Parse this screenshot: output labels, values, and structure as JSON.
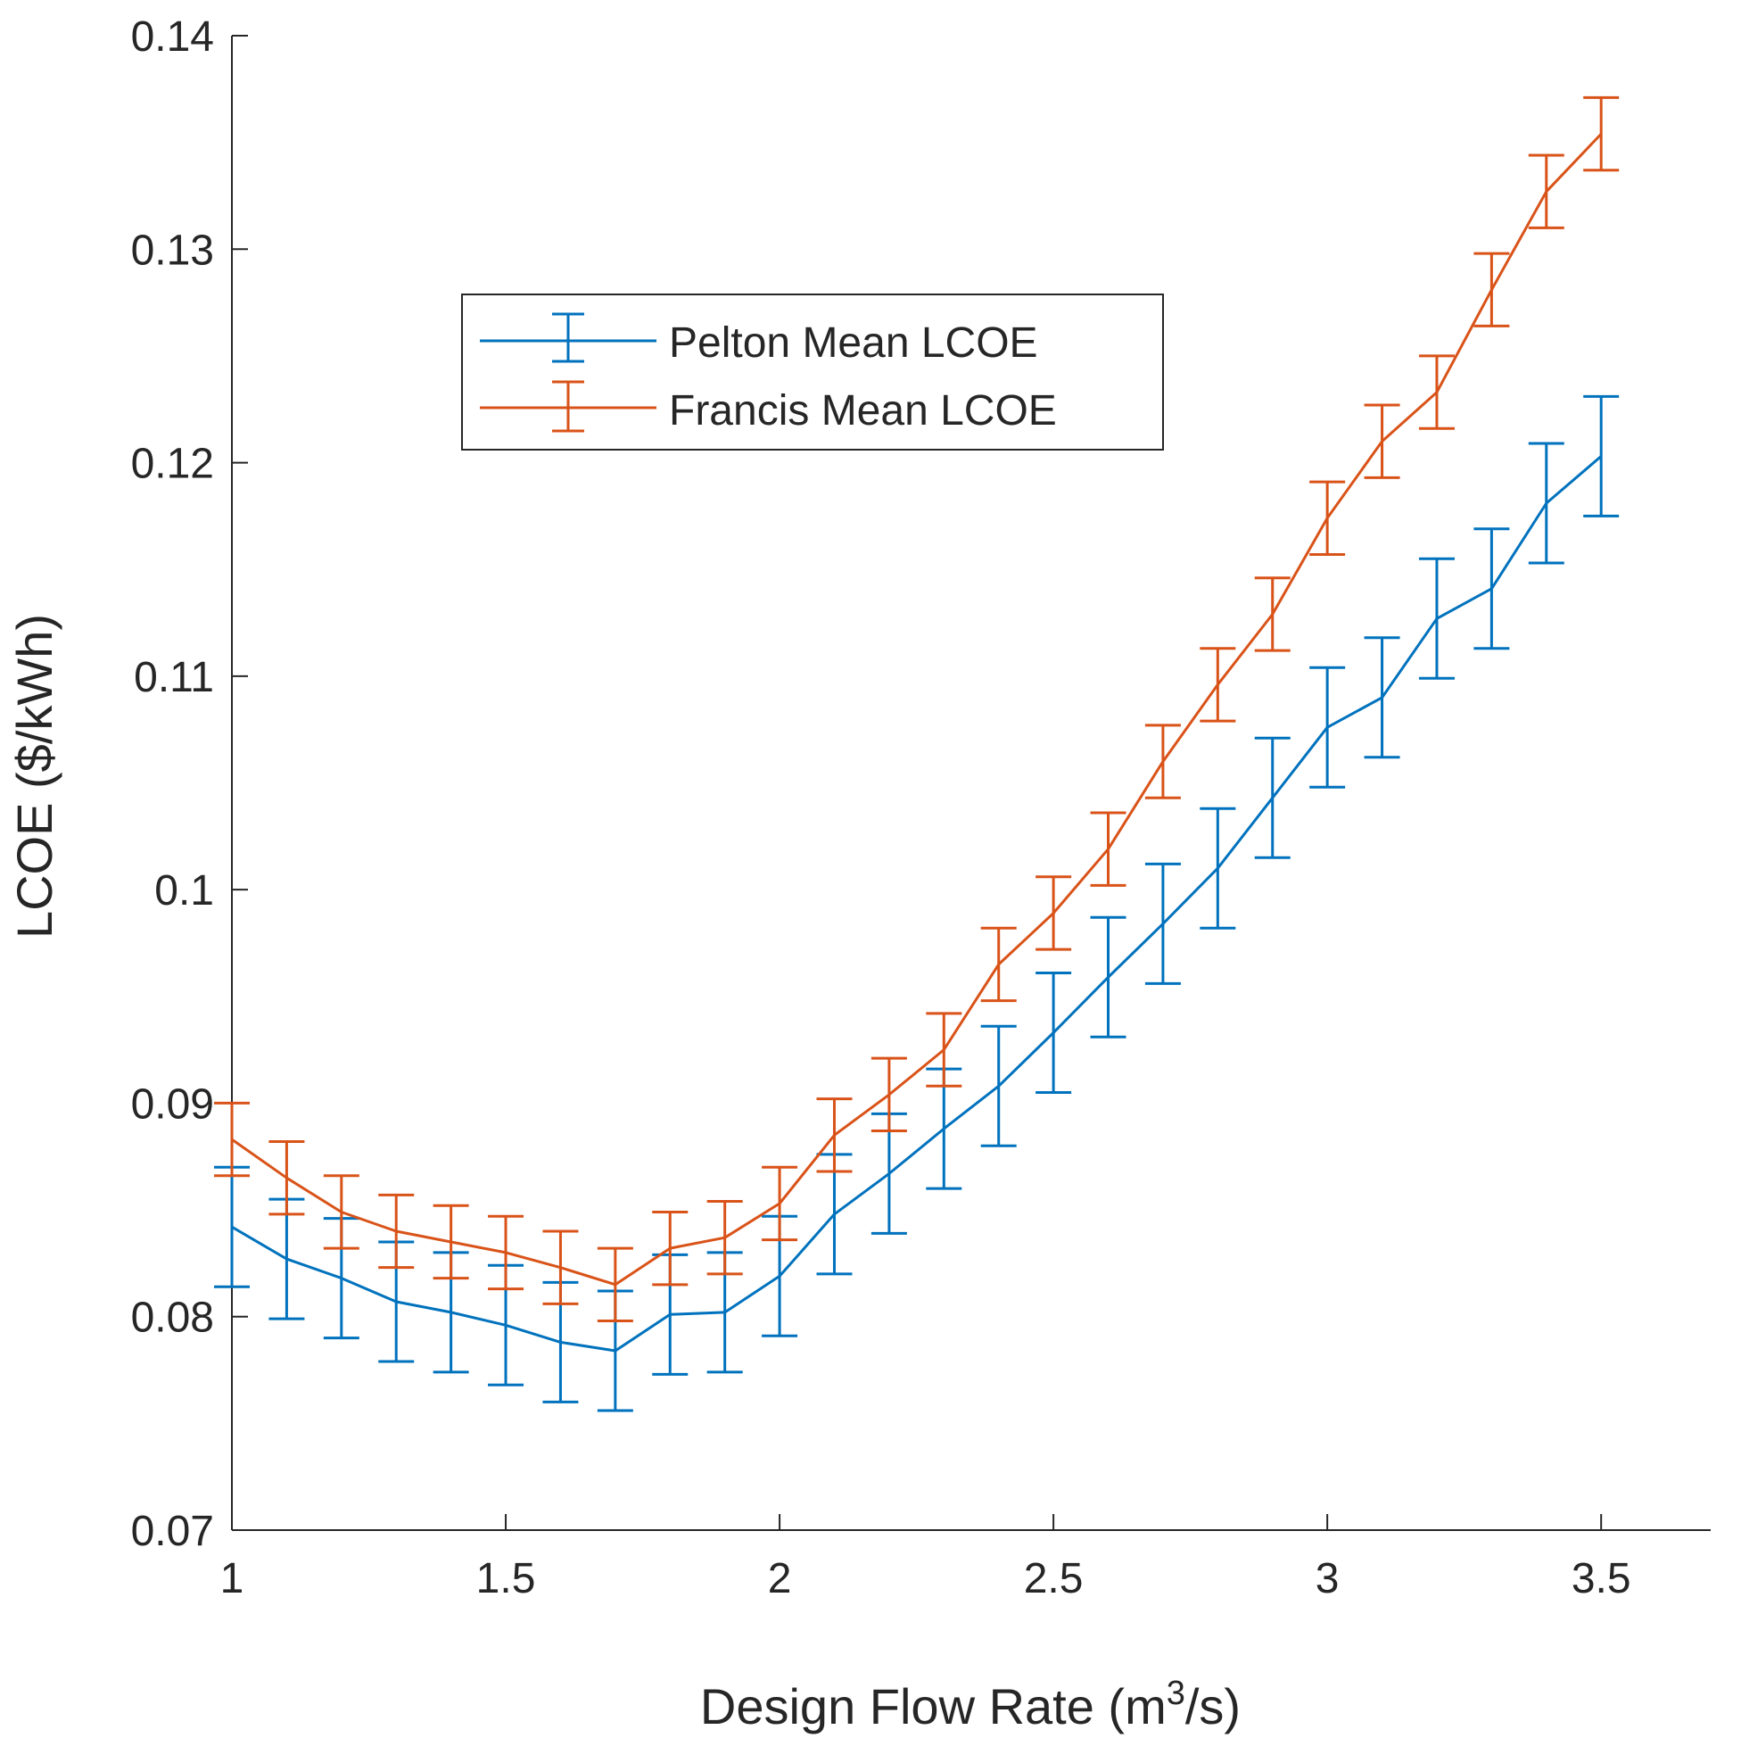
{
  "chart_data": {
    "type": "line",
    "title": "",
    "xlabel": "Design Flow Rate (m",
    "xlabel_sup": "3",
    "xlabel_suffix": "/s)",
    "ylabel": "LCOE ($/kWh)",
    "xlim": [
      1,
      3.7
    ],
    "ylim": [
      0.07,
      0.14
    ],
    "xticks": [
      1,
      1.5,
      2,
      2.5,
      3,
      3.5
    ],
    "xtick_labels": [
      "1",
      "1.5",
      "2",
      "2.5",
      "3",
      "3.5"
    ],
    "yticks": [
      0.07,
      0.08,
      0.09,
      0.1,
      0.11,
      0.12,
      0.13,
      0.14
    ],
    "ytick_labels": [
      "0.07",
      "0.08",
      "0.09",
      "0.1",
      "0.11",
      "0.12",
      "0.13",
      "0.14"
    ],
    "grid": false,
    "legend_position": "upper-left-center",
    "x": [
      1,
      1.1,
      1.2,
      1.3,
      1.4,
      1.5,
      1.6,
      1.7,
      1.8,
      1.9,
      2,
      2.1,
      2.2,
      2.3,
      2.4,
      2.5,
      2.6,
      2.7,
      2.8,
      2.9,
      3,
      3.1,
      3.2,
      3.3,
      3.4,
      3.5
    ],
    "series": [
      {
        "name": "Pelton Mean LCOE",
        "color": "#0072BD",
        "values": [
          0.0842,
          0.0827,
          0.0818,
          0.0807,
          0.0802,
          0.0796,
          0.0788,
          0.0784,
          0.0801,
          0.0802,
          0.0819,
          0.0848,
          0.0867,
          0.0888,
          0.0908,
          0.0933,
          0.0959,
          0.0984,
          0.101,
          0.1043,
          0.1076,
          0.109,
          0.1127,
          0.1141,
          0.1181,
          0.1203
        ],
        "error": [
          0.0028,
          0.0028,
          0.0028,
          0.0028,
          0.0028,
          0.0028,
          0.0028,
          0.0028,
          0.0028,
          0.0028,
          0.0028,
          0.0028,
          0.0028,
          0.0028,
          0.0028,
          0.0028,
          0.0028,
          0.0028,
          0.0028,
          0.0028,
          0.0028,
          0.0028,
          0.0028,
          0.0028,
          0.0028,
          0.0028
        ]
      },
      {
        "name": "Francis Mean LCOE",
        "color": "#D95319",
        "values": [
          0.0883,
          0.0865,
          0.0849,
          0.084,
          0.0835,
          0.083,
          0.0823,
          0.0815,
          0.0832,
          0.0837,
          0.0853,
          0.0885,
          0.0904,
          0.0925,
          0.0965,
          0.0989,
          0.1019,
          0.106,
          0.1096,
          0.1129,
          0.1174,
          0.121,
          0.1233,
          0.1281,
          0.1327,
          0.1354
        ],
        "error": [
          0.0017,
          0.0017,
          0.0017,
          0.0017,
          0.0017,
          0.0017,
          0.0017,
          0.0017,
          0.0017,
          0.0017,
          0.0017,
          0.0017,
          0.0017,
          0.0017,
          0.0017,
          0.0017,
          0.0017,
          0.0017,
          0.0017,
          0.0017,
          0.0017,
          0.0017,
          0.0017,
          0.0017,
          0.0017,
          0.0017
        ]
      }
    ]
  }
}
